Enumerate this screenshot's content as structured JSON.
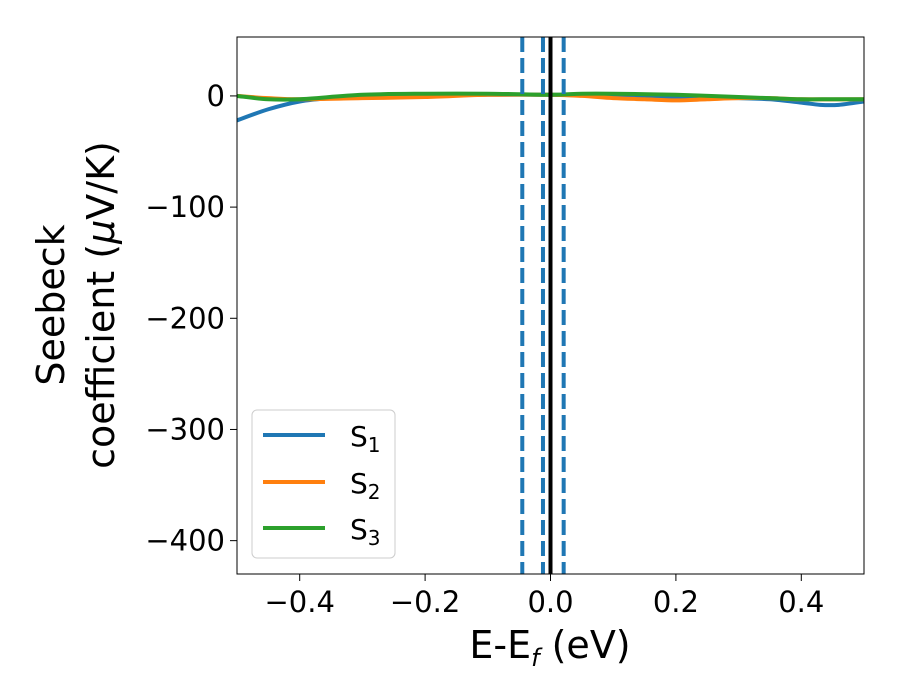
{
  "chart_data": {
    "type": "line",
    "xlabel": "E-E",
    "xlabel_sub": "f",
    "xlabel_unit": " (eV)",
    "ylabel_line1": "Seebeck",
    "ylabel_line2_prefix": "coefficient  (",
    "ylabel_mu": "μ",
    "ylabel_line2_suffix": "V/K)",
    "xlim": [
      -0.5,
      0.5
    ],
    "ylim": [
      -430,
      53
    ],
    "xticks": [
      -0.4,
      -0.2,
      0.0,
      0.2,
      0.4
    ],
    "xtick_labels": [
      "−0.4",
      "−0.2",
      "0.0",
      "0.2",
      "0.4"
    ],
    "yticks": [
      0,
      -100,
      -200,
      -300,
      -400
    ],
    "ytick_labels": [
      "0",
      "−100",
      "−200",
      "−300",
      "−400"
    ],
    "grid": false,
    "legend_position": "bottom-left",
    "series": [
      {
        "name": "S",
        "name_sub": "1",
        "color": "#1f77b4",
        "x": [
          -0.5,
          -0.45,
          -0.4,
          -0.35,
          -0.3,
          -0.2,
          -0.1,
          0.0,
          0.1,
          0.2,
          0.3,
          0.35,
          0.4,
          0.43,
          0.46,
          0.5
        ],
        "y": [
          -22,
          -12,
          -5,
          -2,
          -1,
          0,
          1,
          1,
          0,
          -1,
          -2,
          -3,
          -6,
          -8,
          -8,
          -5
        ]
      },
      {
        "name": "S",
        "name_sub": "2",
        "color": "#ff7f0e",
        "x": [
          -0.5,
          -0.45,
          -0.4,
          -0.3,
          -0.2,
          -0.1,
          0.0,
          0.05,
          0.1,
          0.15,
          0.2,
          0.25,
          0.3,
          0.35,
          0.4,
          0.5
        ],
        "y": [
          0,
          -2,
          -3,
          -2,
          -1,
          1,
          1,
          0,
          -2,
          -3,
          -4,
          -3,
          -2,
          -2,
          -3,
          -3
        ]
      },
      {
        "name": "S",
        "name_sub": "3",
        "color": "#2ca02c",
        "x": [
          -0.5,
          -0.45,
          -0.4,
          -0.3,
          -0.2,
          -0.1,
          0.0,
          0.05,
          0.1,
          0.2,
          0.3,
          0.35,
          0.4,
          0.45,
          0.5
        ],
        "y": [
          0,
          -3,
          -3,
          1,
          2,
          2,
          1,
          2,
          2,
          1,
          -1,
          -2,
          -3,
          -3,
          -3
        ]
      }
    ],
    "vlines": [
      {
        "x": -0.045,
        "style": "dashed",
        "color": "#1f77b4"
      },
      {
        "x": -0.012,
        "style": "dashed",
        "color": "#1f77b4"
      },
      {
        "x": 0.021,
        "style": "dashed",
        "color": "#1f77b4"
      },
      {
        "x": 0.0,
        "style": "solid",
        "color": "#000000"
      }
    ]
  }
}
